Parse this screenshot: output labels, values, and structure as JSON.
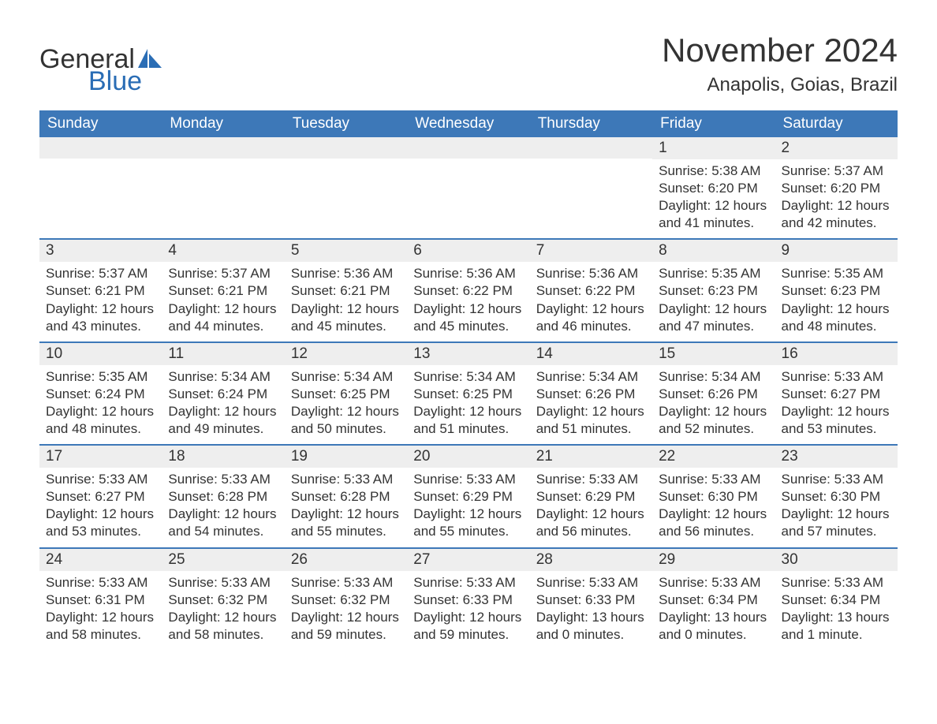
{
  "brand": {
    "text1": "General",
    "text2": "Blue",
    "text_color": "#333333",
    "accent_color": "#2a6db5"
  },
  "title": "November 2024",
  "location": "Anapolis, Goias, Brazil",
  "colors": {
    "header_bg": "#3d78b8",
    "header_text": "#ffffff",
    "daynum_bg": "#eeeeee",
    "border": "#3d78b8",
    "body_text": "#333333",
    "page_bg": "#ffffff"
  },
  "typography": {
    "title_fontsize": 42,
    "location_fontsize": 24,
    "dow_fontsize": 19,
    "daynum_fontsize": 19,
    "body_fontsize": 17
  },
  "dow": [
    "Sunday",
    "Monday",
    "Tuesday",
    "Wednesday",
    "Thursday",
    "Friday",
    "Saturday"
  ],
  "weeks": [
    [
      null,
      null,
      null,
      null,
      null,
      {
        "n": "1",
        "sunrise": "Sunrise: 5:38 AM",
        "sunset": "Sunset: 6:20 PM",
        "daylight": "Daylight: 12 hours and 41 minutes."
      },
      {
        "n": "2",
        "sunrise": "Sunrise: 5:37 AM",
        "sunset": "Sunset: 6:20 PM",
        "daylight": "Daylight: 12 hours and 42 minutes."
      }
    ],
    [
      {
        "n": "3",
        "sunrise": "Sunrise: 5:37 AM",
        "sunset": "Sunset: 6:21 PM",
        "daylight": "Daylight: 12 hours and 43 minutes."
      },
      {
        "n": "4",
        "sunrise": "Sunrise: 5:37 AM",
        "sunset": "Sunset: 6:21 PM",
        "daylight": "Daylight: 12 hours and 44 minutes."
      },
      {
        "n": "5",
        "sunrise": "Sunrise: 5:36 AM",
        "sunset": "Sunset: 6:21 PM",
        "daylight": "Daylight: 12 hours and 45 minutes."
      },
      {
        "n": "6",
        "sunrise": "Sunrise: 5:36 AM",
        "sunset": "Sunset: 6:22 PM",
        "daylight": "Daylight: 12 hours and 45 minutes."
      },
      {
        "n": "7",
        "sunrise": "Sunrise: 5:36 AM",
        "sunset": "Sunset: 6:22 PM",
        "daylight": "Daylight: 12 hours and 46 minutes."
      },
      {
        "n": "8",
        "sunrise": "Sunrise: 5:35 AM",
        "sunset": "Sunset: 6:23 PM",
        "daylight": "Daylight: 12 hours and 47 minutes."
      },
      {
        "n": "9",
        "sunrise": "Sunrise: 5:35 AM",
        "sunset": "Sunset: 6:23 PM",
        "daylight": "Daylight: 12 hours and 48 minutes."
      }
    ],
    [
      {
        "n": "10",
        "sunrise": "Sunrise: 5:35 AM",
        "sunset": "Sunset: 6:24 PM",
        "daylight": "Daylight: 12 hours and 48 minutes."
      },
      {
        "n": "11",
        "sunrise": "Sunrise: 5:34 AM",
        "sunset": "Sunset: 6:24 PM",
        "daylight": "Daylight: 12 hours and 49 minutes."
      },
      {
        "n": "12",
        "sunrise": "Sunrise: 5:34 AM",
        "sunset": "Sunset: 6:25 PM",
        "daylight": "Daylight: 12 hours and 50 minutes."
      },
      {
        "n": "13",
        "sunrise": "Sunrise: 5:34 AM",
        "sunset": "Sunset: 6:25 PM",
        "daylight": "Daylight: 12 hours and 51 minutes."
      },
      {
        "n": "14",
        "sunrise": "Sunrise: 5:34 AM",
        "sunset": "Sunset: 6:26 PM",
        "daylight": "Daylight: 12 hours and 51 minutes."
      },
      {
        "n": "15",
        "sunrise": "Sunrise: 5:34 AM",
        "sunset": "Sunset: 6:26 PM",
        "daylight": "Daylight: 12 hours and 52 minutes."
      },
      {
        "n": "16",
        "sunrise": "Sunrise: 5:33 AM",
        "sunset": "Sunset: 6:27 PM",
        "daylight": "Daylight: 12 hours and 53 minutes."
      }
    ],
    [
      {
        "n": "17",
        "sunrise": "Sunrise: 5:33 AM",
        "sunset": "Sunset: 6:27 PM",
        "daylight": "Daylight: 12 hours and 53 minutes."
      },
      {
        "n": "18",
        "sunrise": "Sunrise: 5:33 AM",
        "sunset": "Sunset: 6:28 PM",
        "daylight": "Daylight: 12 hours and 54 minutes."
      },
      {
        "n": "19",
        "sunrise": "Sunrise: 5:33 AM",
        "sunset": "Sunset: 6:28 PM",
        "daylight": "Daylight: 12 hours and 55 minutes."
      },
      {
        "n": "20",
        "sunrise": "Sunrise: 5:33 AM",
        "sunset": "Sunset: 6:29 PM",
        "daylight": "Daylight: 12 hours and 55 minutes."
      },
      {
        "n": "21",
        "sunrise": "Sunrise: 5:33 AM",
        "sunset": "Sunset: 6:29 PM",
        "daylight": "Daylight: 12 hours and 56 minutes."
      },
      {
        "n": "22",
        "sunrise": "Sunrise: 5:33 AM",
        "sunset": "Sunset: 6:30 PM",
        "daylight": "Daylight: 12 hours and 56 minutes."
      },
      {
        "n": "23",
        "sunrise": "Sunrise: 5:33 AM",
        "sunset": "Sunset: 6:30 PM",
        "daylight": "Daylight: 12 hours and 57 minutes."
      }
    ],
    [
      {
        "n": "24",
        "sunrise": "Sunrise: 5:33 AM",
        "sunset": "Sunset: 6:31 PM",
        "daylight": "Daylight: 12 hours and 58 minutes."
      },
      {
        "n": "25",
        "sunrise": "Sunrise: 5:33 AM",
        "sunset": "Sunset: 6:32 PM",
        "daylight": "Daylight: 12 hours and 58 minutes."
      },
      {
        "n": "26",
        "sunrise": "Sunrise: 5:33 AM",
        "sunset": "Sunset: 6:32 PM",
        "daylight": "Daylight: 12 hours and 59 minutes."
      },
      {
        "n": "27",
        "sunrise": "Sunrise: 5:33 AM",
        "sunset": "Sunset: 6:33 PM",
        "daylight": "Daylight: 12 hours and 59 minutes."
      },
      {
        "n": "28",
        "sunrise": "Sunrise: 5:33 AM",
        "sunset": "Sunset: 6:33 PM",
        "daylight": "Daylight: 13 hours and 0 minutes."
      },
      {
        "n": "29",
        "sunrise": "Sunrise: 5:33 AM",
        "sunset": "Sunset: 6:34 PM",
        "daylight": "Daylight: 13 hours and 0 minutes."
      },
      {
        "n": "30",
        "sunrise": "Sunrise: 5:33 AM",
        "sunset": "Sunset: 6:34 PM",
        "daylight": "Daylight: 13 hours and 1 minute."
      }
    ]
  ]
}
